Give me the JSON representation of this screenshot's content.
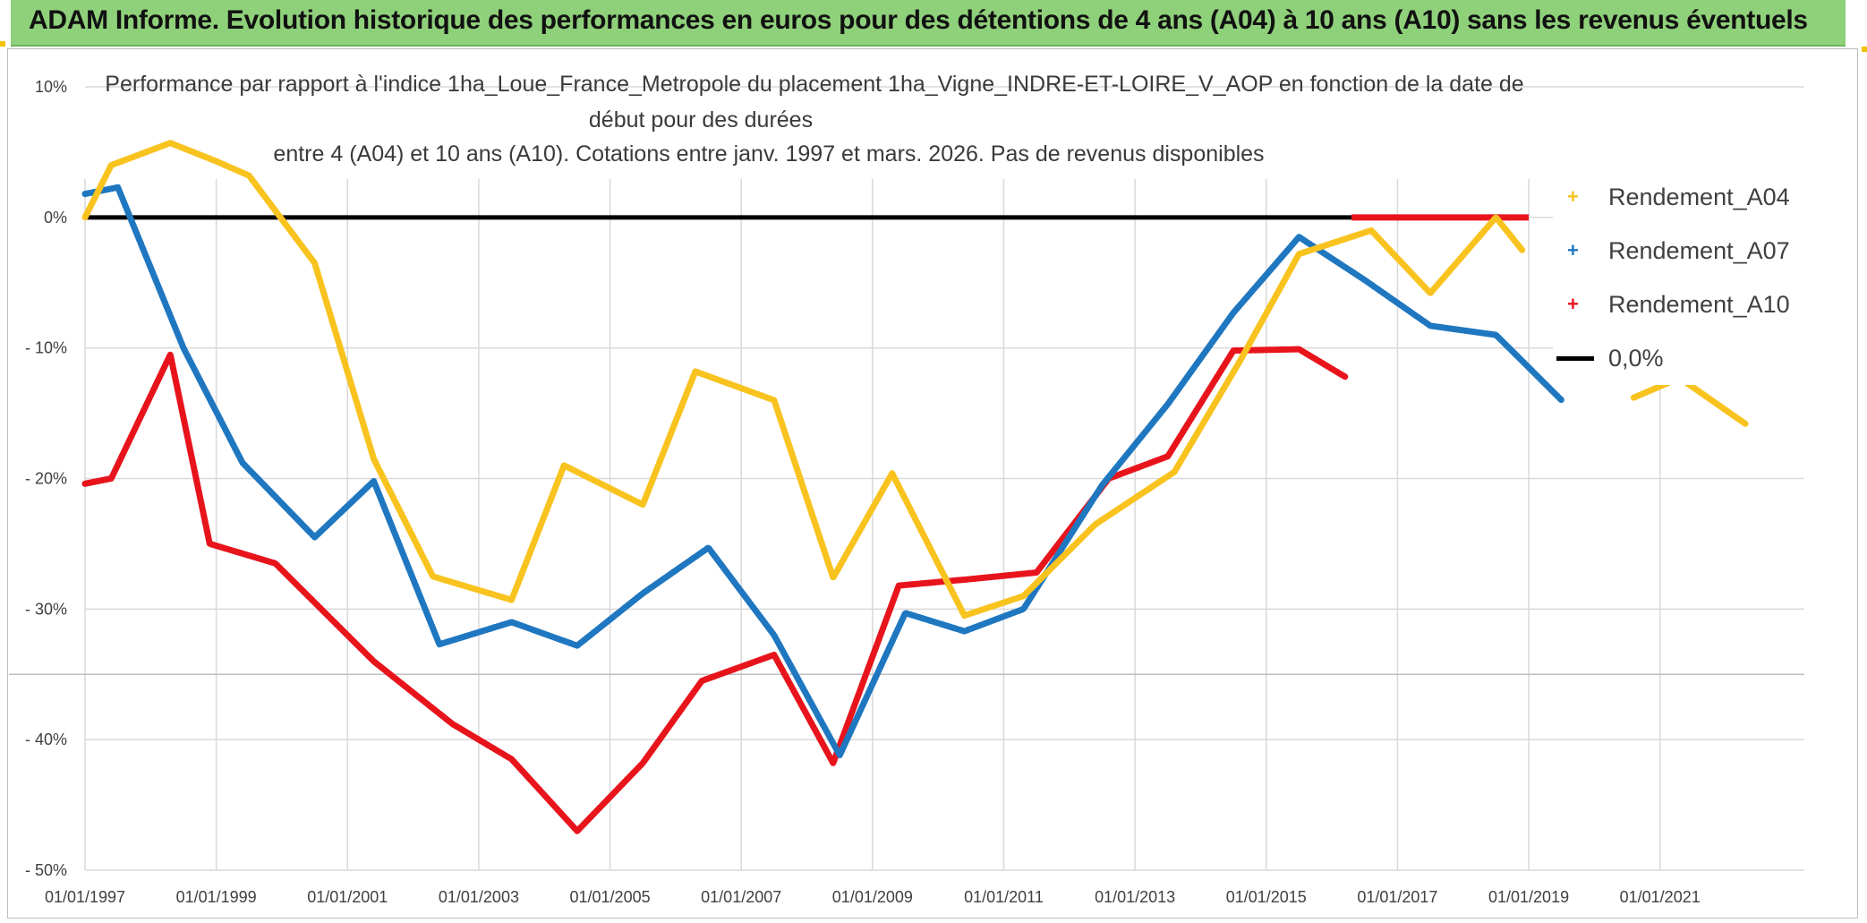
{
  "banner": {
    "title": "ADAM Informe. Evolution historique des performances en euros pour des détentions de 4 ans (A04) à 10 ans (A10) sans les revenus éventuels"
  },
  "colors": {
    "banner_bg": "#8fd07a",
    "A04": "#f9c31f",
    "A07": "#1f77c0",
    "A10": "#e8141c",
    "zero": "#000000",
    "grid": "#d9d9d9"
  },
  "chart_data": {
    "type": "line",
    "title_lines": [
      "Performance  par rapport à l'indice 1ha_Loue_France_Metropole  du placement 1ha_Vigne_INDRE-ET-LOIRE_V_AOP en fonction de la date de",
      "début pour des durées",
      "entre 4 (A04) et 10 ans (A10). Cotations entre janv. 1997 et mars. 2026. Pas de revenus disponibles"
    ],
    "x_tick_labels": [
      "01/01/1997",
      "01/01/1999",
      "01/01/2001",
      "01/01/2003",
      "01/01/2005",
      "01/01/2007",
      "01/01/2009",
      "01/01/2011",
      "01/01/2013",
      "01/01/2015",
      "01/01/2017",
      "01/01/2019",
      "01/01/2021"
    ],
    "x_range": [
      1997.0,
      2023.2
    ],
    "y_tick_labels": [
      "10%",
      "0%",
      "- 10%",
      "- 20%",
      "- 30%",
      "- 40%",
      "- 50%"
    ],
    "y_tick_values": [
      10,
      0,
      -10,
      -20,
      -30,
      -40,
      -50
    ],
    "ylim": [
      -50,
      10
    ],
    "series": [
      {
        "name": "Rendement_A04",
        "x": [
          1997.0,
          1997.4,
          1998.3,
          1999.0,
          1999.5,
          2000.5,
          2001.4,
          2002.3,
          2003.5,
          2004.3,
          2005.5,
          2006.3,
          2007.5,
          2008.4,
          2009.3,
          2010.4,
          2011.3,
          2012.4,
          2013.6,
          2014.6,
          2015.5,
          2016.6,
          2017.5,
          2018.5,
          2018.9
        ],
        "values": [
          0.0,
          4.0,
          5.7,
          4.3,
          3.2,
          -3.5,
          -18.5,
          -27.5,
          -29.3,
          -19.0,
          -22.0,
          -11.8,
          -14.0,
          -27.6,
          -19.6,
          -30.5,
          -29.0,
          -23.5,
          -19.5,
          -11.0,
          -2.8,
          -1.0,
          -5.8,
          0.0,
          -2.5
        ],
        "tail_x": [
          2020.6,
          2021.3,
          2022.3
        ],
        "tail_values": [
          -13.8,
          -12.3,
          -15.8
        ]
      },
      {
        "name": "Rendement_A07",
        "x": [
          1997.0,
          1997.5,
          1998.5,
          1999.4,
          2000.5,
          2001.4,
          2002.4,
          2003.5,
          2004.5,
          2005.5,
          2006.5,
          2007.5,
          2008.5,
          2009.5,
          2010.4,
          2011.3,
          2012.5,
          2013.5,
          2014.5,
          2015.5,
          2016.5,
          2017.5,
          2018.5,
          2019.0,
          2019.5
        ],
        "values": [
          1.8,
          2.3,
          -10.0,
          -18.8,
          -24.5,
          -20.2,
          -32.7,
          -31.0,
          -32.8,
          -28.8,
          -25.3,
          -32.0,
          -41.2,
          -30.3,
          -31.7,
          -30.0,
          -20.5,
          -14.3,
          -7.3,
          -1.5,
          -4.8,
          -8.3,
          -9.0,
          -11.5,
          -14.0
        ]
      },
      {
        "name": "Rendement_A10",
        "x": [
          1997.0,
          1997.4,
          1998.3,
          1998.9,
          1999.9,
          2001.4,
          2002.6,
          2003.5,
          2004.5,
          2005.5,
          2006.4,
          2007.5,
          2008.4,
          2009.4,
          2010.5,
          2011.5,
          2012.6,
          2013.5,
          2014.5,
          2015.5,
          2016.2
        ],
        "values": [
          -20.4,
          -20.0,
          -10.5,
          -25.0,
          -26.5,
          -34.0,
          -38.8,
          -41.5,
          -47.0,
          -41.8,
          -35.5,
          -33.5,
          -41.8,
          -28.2,
          -27.7,
          -27.2,
          -20.0,
          -18.3,
          -10.2,
          -10.1,
          -12.2
        ],
        "zero_segment_x": [
          2016.3,
          2019.0
        ],
        "zero_segment_value": 0.0
      }
    ],
    "legend": [
      {
        "label": "Rendement_A04"
      },
      {
        "label": "Rendement_A07"
      },
      {
        "label": "Rendement_A10"
      },
      {
        "label": "0,0%"
      }
    ],
    "reference_line": {
      "label": "0,0%",
      "value": 0.0
    }
  }
}
